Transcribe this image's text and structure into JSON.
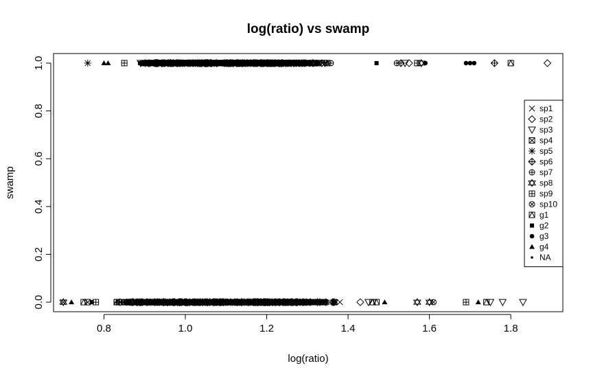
{
  "chart_data": {
    "type": "scatter",
    "title": "log(ratio) vs swamp",
    "xlabel": "log(ratio)",
    "ylabel": "swamp",
    "xlim": [
      0.676,
      1.928
    ],
    "ylim": [
      -0.04,
      1.04
    ],
    "x_ticks": [
      0.8,
      1.0,
      1.2,
      1.4,
      1.6,
      1.8
    ],
    "x_tick_labels": [
      "0.8",
      "1.0",
      "1.2",
      "1.4",
      "1.6",
      "1.8"
    ],
    "y_ticks": [
      0.0,
      0.2,
      0.4,
      0.6,
      0.8,
      1.0
    ],
    "y_tick_labels": [
      "0.0",
      "0.2",
      "0.4",
      "0.6",
      "0.8",
      "1.0"
    ],
    "grid": false,
    "legend_position": "right",
    "legend": [
      {
        "label": "sp1",
        "pch": "x"
      },
      {
        "label": "sp2",
        "pch": "diamond"
      },
      {
        "label": "sp3",
        "pch": "triangle-down"
      },
      {
        "label": "sp4",
        "pch": "square-x"
      },
      {
        "label": "sp5",
        "pch": "asterisk"
      },
      {
        "label": "sp6",
        "pch": "diamond-plus"
      },
      {
        "label": "sp7",
        "pch": "circle-plus"
      },
      {
        "label": "sp8",
        "pch": "star-of-david"
      },
      {
        "label": "sp9",
        "pch": "square-plus"
      },
      {
        "label": "sp10",
        "pch": "circle-x"
      },
      {
        "label": "g1",
        "pch": "square-triangle"
      },
      {
        "label": "g2",
        "pch": "filled-square"
      },
      {
        "label": "g3",
        "pch": "filled-circle"
      },
      {
        "label": "g4",
        "pch": "filled-triangle"
      },
      {
        "label": "NA",
        "pch": "dot"
      }
    ],
    "dense_clusters": [
      {
        "y": 1,
        "x_start": 0.87,
        "x_end": 1.37
      },
      {
        "y": 0,
        "x_start": 0.82,
        "x_end": 1.38
      }
    ],
    "series": [
      {
        "name": "sp1",
        "points": [
          [
            0.94,
            1
          ],
          [
            1.15,
            1
          ],
          [
            0.7,
            0
          ],
          [
            0.97,
            0
          ],
          [
            1.38,
            0
          ]
        ]
      },
      {
        "name": "sp2",
        "points": [
          [
            1.89,
            1
          ],
          [
            1.55,
            1
          ],
          [
            1.43,
            0
          ],
          [
            1.1,
            1
          ],
          [
            1.05,
            0
          ]
        ]
      },
      {
        "name": "sp3",
        "points": [
          [
            0.89,
            1
          ],
          [
            1.54,
            1
          ],
          [
            1.45,
            0
          ],
          [
            1.78,
            0
          ],
          [
            1.83,
            0
          ],
          [
            1.75,
            0
          ]
        ]
      },
      {
        "name": "sp4",
        "points": [
          [
            1.18,
            0
          ],
          [
            1.21,
            1
          ],
          [
            0.76,
            0
          ]
        ]
      },
      {
        "name": "sp5",
        "points": [
          [
            0.76,
            1
          ],
          [
            1.05,
            0
          ]
        ]
      },
      {
        "name": "sp6",
        "points": [
          [
            1.76,
            1
          ],
          [
            1.53,
            1
          ],
          [
            1.25,
            0
          ]
        ]
      },
      {
        "name": "sp7",
        "points": [
          [
            1.52,
            1
          ],
          [
            1.27,
            0
          ]
        ]
      },
      {
        "name": "sp8",
        "points": [
          [
            0.91,
            1
          ],
          [
            0.93,
            1
          ],
          [
            0.7,
            0
          ],
          [
            1.57,
            0
          ],
          [
            1.6,
            0
          ],
          [
            1.58,
            1
          ]
        ]
      },
      {
        "name": "sp9",
        "points": [
          [
            1.57,
            1
          ],
          [
            1.69,
            0
          ],
          [
            0.78,
            0
          ],
          [
            0.85,
            1
          ]
        ]
      },
      {
        "name": "sp10",
        "points": [
          [
            1.61,
            0
          ],
          [
            1.32,
            0
          ]
        ]
      },
      {
        "name": "g1",
        "points": [
          [
            1.8,
            1
          ],
          [
            1.46,
            0
          ],
          [
            1.47,
            0
          ],
          [
            0.75,
            0
          ],
          [
            1.74,
            0
          ]
        ]
      },
      {
        "name": "g2",
        "points": [
          [
            1.47,
            1
          ],
          [
            0.77,
            0
          ]
        ]
      },
      {
        "name": "g3",
        "points": [
          [
            1.59,
            1
          ],
          [
            1.69,
            1
          ],
          [
            1.7,
            1
          ],
          [
            1.71,
            1
          ]
        ]
      },
      {
        "name": "g4",
        "points": [
          [
            0.8,
            1
          ],
          [
            0.81,
            1
          ],
          [
            0.72,
            0
          ],
          [
            1.49,
            0
          ],
          [
            1.72,
            0
          ]
        ]
      },
      {
        "name": "NA",
        "points": []
      }
    ]
  }
}
